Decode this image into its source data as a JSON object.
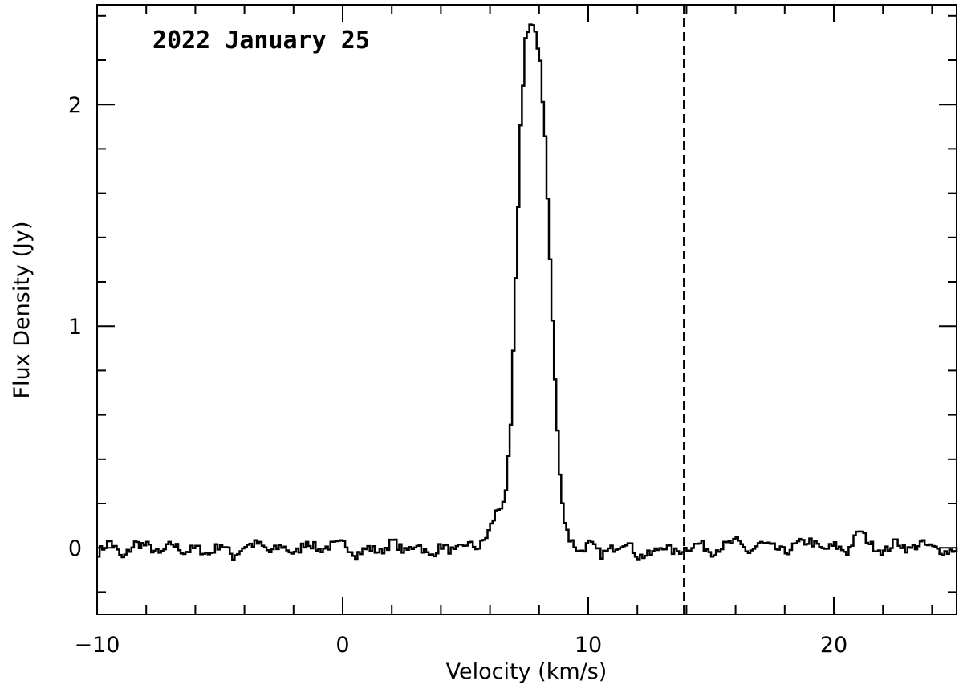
{
  "chart_data": {
    "type": "line",
    "title": "",
    "annotation": "2022 January 25",
    "xlabel": "Velocity (km/s)",
    "ylabel": "Flux Density (Jy)",
    "xlim": [
      -10,
      25
    ],
    "ylim": [
      -0.3,
      2.45
    ],
    "xticks_major": [
      -10,
      0,
      10,
      20
    ],
    "xtick_labels": [
      "−10",
      "0",
      "10",
      "20"
    ],
    "yticks_major": [
      0,
      1,
      2
    ],
    "ytick_labels": [
      "0",
      "1",
      "2"
    ],
    "grid": false,
    "legend": "none",
    "step_style": true,
    "series_color": "#000000",
    "reference_line": {
      "x": 13.9,
      "style": "dashed"
    },
    "series": [
      {
        "x": [
          -10.0,
          -9.5,
          -9.0,
          -8.5,
          -8.0,
          -7.5,
          -7.0,
          -6.5,
          -6.0,
          -5.5,
          -5.0,
          -4.5,
          -4.0,
          -3.5,
          -3.0,
          -2.5,
          -2.0,
          -1.5,
          -1.0,
          -0.5,
          0.0,
          0.5,
          1.0,
          1.5,
          2.0,
          2.5,
          3.0,
          3.5,
          4.0,
          4.5,
          5.0,
          5.5,
          5.8,
          6.0,
          6.2,
          6.4,
          6.6,
          6.8,
          7.0,
          7.2,
          7.4,
          7.6,
          7.8,
          8.0,
          8.2,
          8.4,
          8.6,
          8.8,
          9.0,
          9.2,
          9.4,
          9.6,
          10.0,
          10.5,
          11.0,
          11.5,
          12.0,
          12.5,
          13.0,
          13.5,
          14.0,
          14.5,
          15.0,
          15.5,
          16.0,
          16.5,
          17.0,
          17.5,
          18.0,
          18.5,
          19.0,
          19.5,
          20.0,
          20.5,
          21.0,
          21.5,
          22.0,
          22.5,
          23.0,
          23.5,
          24.0,
          24.5,
          25.0
        ],
        "y": [
          -0.02,
          0.03,
          -0.05,
          0.02,
          0.01,
          -0.03,
          0.02,
          -0.02,
          0.0,
          -0.03,
          0.02,
          -0.04,
          0.01,
          0.02,
          -0.02,
          0.01,
          -0.03,
          0.03,
          -0.01,
          0.01,
          0.02,
          -0.03,
          0.0,
          -0.02,
          0.03,
          -0.02,
          0.02,
          -0.04,
          0.01,
          -0.02,
          0.02,
          0.0,
          0.05,
          0.1,
          0.16,
          0.19,
          0.24,
          0.55,
          1.2,
          1.9,
          2.3,
          2.35,
          2.33,
          2.2,
          1.85,
          1.3,
          0.75,
          0.32,
          0.12,
          0.04,
          0.01,
          -0.02,
          0.02,
          -0.03,
          0.0,
          0.03,
          -0.04,
          -0.03,
          0.01,
          -0.02,
          0.0,
          0.02,
          -0.02,
          0.01,
          0.03,
          -0.02,
          0.02,
          0.0,
          -0.02,
          0.02,
          0.03,
          -0.01,
          0.01,
          -0.02,
          0.08,
          0.01,
          -0.02,
          0.03,
          -0.01,
          0.02,
          0.0,
          -0.02,
          0.0
        ]
      }
    ]
  }
}
